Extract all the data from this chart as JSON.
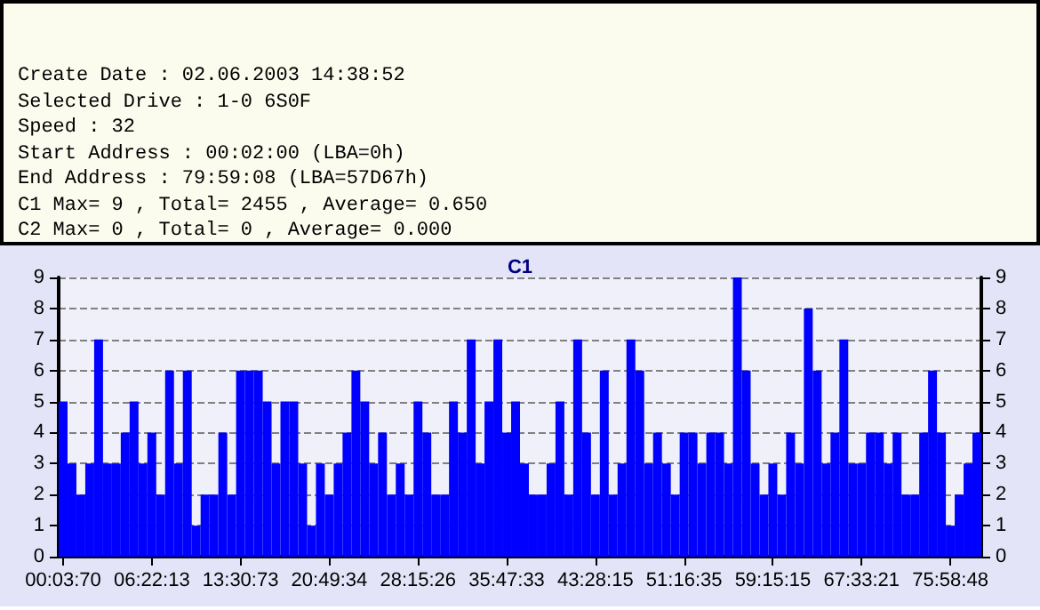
{
  "chart_data": [
    {
      "type": "other",
      "annotations": [
        "Create Date : 02.06.2003 14:38:52",
        "Selected Drive : 1-0 6S0F",
        "Speed : 32",
        "Start Address : 00:02:00 (LBA=0h)",
        "End Address : 79:59:08 (LBA=57D67h)",
        "C1 Max= 9 , Total= 2455 , Average= 0.650",
        "C2 Max= 0 , Total= 0 , Average= 0.000"
      ]
    },
    {
      "type": "bar",
      "title": "C1",
      "categories": [
        "00:03:70",
        null,
        null,
        null,
        null,
        null,
        null,
        null,
        null,
        null,
        "06:22:13",
        null,
        null,
        null,
        null,
        null,
        null,
        null,
        null,
        null,
        "13:30:73",
        null,
        null,
        null,
        null,
        null,
        null,
        null,
        null,
        null,
        "20:49:34",
        null,
        null,
        null,
        null,
        null,
        null,
        null,
        null,
        null,
        "28:15:26",
        null,
        null,
        null,
        null,
        null,
        null,
        null,
        null,
        null,
        "35:47:33",
        null,
        null,
        null,
        null,
        null,
        null,
        null,
        null,
        null,
        "43:28:15",
        null,
        null,
        null,
        null,
        null,
        null,
        null,
        null,
        null,
        "51:16:35",
        null,
        null,
        null,
        null,
        null,
        null,
        null,
        null,
        null,
        "59:15:15",
        null,
        null,
        null,
        null,
        null,
        null,
        null,
        null,
        null,
        "67:33:21",
        null,
        null,
        null,
        null,
        null,
        null,
        null,
        null,
        null,
        "75:58:48",
        null,
        null,
        null
      ],
      "values": [
        5,
        3,
        2,
        3,
        7,
        3,
        3,
        4,
        5,
        3,
        4,
        2,
        6,
        3,
        6,
        1,
        2,
        2,
        4,
        2,
        6,
        6,
        6,
        5,
        3,
        5,
        5,
        3,
        1,
        3,
        2,
        3,
        4,
        6,
        5,
        3,
        4,
        2,
        3,
        2,
        5,
        4,
        2,
        2,
        5,
        4,
        7,
        3,
        5,
        7,
        4,
        5,
        3,
        2,
        2,
        3,
        5,
        2,
        7,
        4,
        2,
        6,
        2,
        3,
        7,
        6,
        3,
        4,
        3,
        2,
        4,
        4,
        3,
        4,
        4,
        3,
        9,
        6,
        3,
        2,
        3,
        2,
        4,
        3,
        8,
        6,
        3,
        4,
        7,
        3,
        3,
        4,
        4,
        3,
        4,
        2,
        2,
        4,
        6,
        4,
        1,
        2,
        3,
        4
      ],
      "color": "#0000ff",
      "ylim": [
        0,
        9
      ],
      "yticks": [
        0,
        1,
        2,
        3,
        4,
        5,
        6,
        7,
        8,
        9
      ],
      "y2lim": [
        0,
        9
      ],
      "y2ticks": [
        0,
        1,
        2,
        3,
        4,
        5,
        6,
        7,
        8,
        9
      ],
      "grid": "y"
    }
  ]
}
